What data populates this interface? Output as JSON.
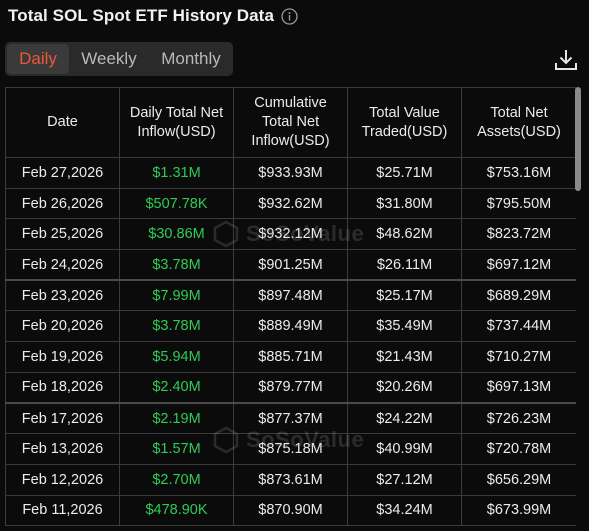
{
  "header": {
    "title": "Total SOL Spot ETF History Data",
    "info_icon": "info-icon"
  },
  "tabs": [
    {
      "label": "Daily",
      "active": true
    },
    {
      "label": "Weekly",
      "active": false
    },
    {
      "label": "Monthly",
      "active": false
    }
  ],
  "download_icon": "download-icon",
  "table": {
    "columns": [
      "Date",
      "Daily Total Net Inflow(USD)",
      "Cumulative Total Net Inflow(USD)",
      "Total Value Traded(USD)",
      "Total Net Assets(USD)"
    ],
    "rows": [
      [
        "Feb 27,2026",
        "$1.31M",
        "$933.93M",
        "$25.71M",
        "$753.16M"
      ],
      [
        "Feb 26,2026",
        "$507.78K",
        "$932.62M",
        "$31.80M",
        "$795.50M"
      ],
      [
        "Feb 25,2026",
        "$30.86M",
        "$932.12M",
        "$48.62M",
        "$823.72M"
      ],
      [
        "Feb 24,2026",
        "$3.78M",
        "$901.25M",
        "$26.11M",
        "$697.12M"
      ],
      [
        "Feb 23,2026",
        "$7.99M",
        "$897.48M",
        "$25.17M",
        "$689.29M"
      ],
      [
        "Feb 20,2026",
        "$3.78M",
        "$889.49M",
        "$35.49M",
        "$737.44M"
      ],
      [
        "Feb 19,2026",
        "$5.94M",
        "$885.71M",
        "$21.43M",
        "$710.27M"
      ],
      [
        "Feb 18,2026",
        "$2.40M",
        "$879.77M",
        "$20.26M",
        "$697.13M"
      ],
      [
        "Feb 17,2026",
        "$2.19M",
        "$877.37M",
        "$24.22M",
        "$726.23M"
      ],
      [
        "Feb 13,2026",
        "$1.57M",
        "$875.18M",
        "$40.99M",
        "$720.78M"
      ],
      [
        "Feb 12,2026",
        "$2.70M",
        "$873.61M",
        "$27.12M",
        "$656.29M"
      ],
      [
        "Feb 11,2026",
        "$478.90K",
        "$870.90M",
        "$34.24M",
        "$673.99M"
      ]
    ]
  },
  "watermark": {
    "text": "SoSoValue"
  },
  "colors": {
    "accent": "#f0563a",
    "inflow_positive": "#2ecc55",
    "background": "#0b0b0b",
    "tab_bg": "#2a2a2a"
  }
}
